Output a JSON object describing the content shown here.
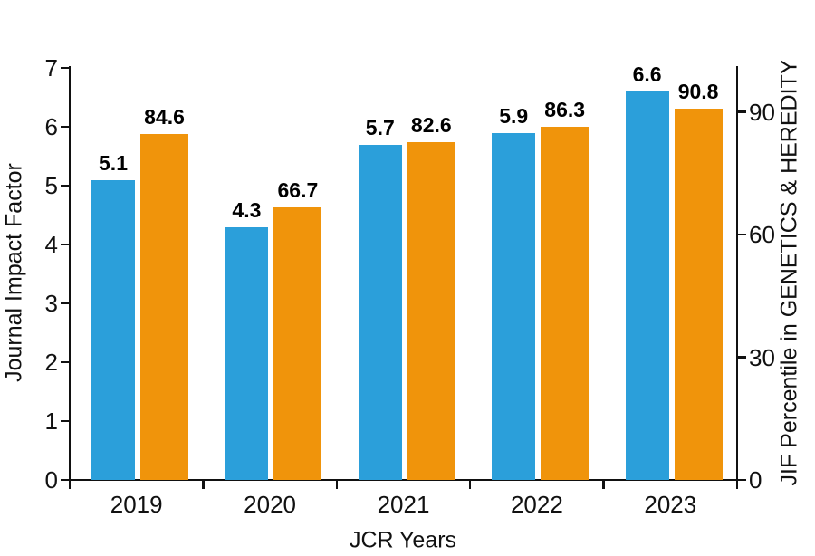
{
  "chart_data": {
    "type": "bar",
    "title": "",
    "xlabel": "JCR Years",
    "categories": [
      "2019",
      "2020",
      "2021",
      "2022",
      "2023"
    ],
    "series": [
      {
        "name": "Journal Impact Factor",
        "axis": "left",
        "color": "#2B9FDA",
        "values": [
          5.1,
          4.3,
          5.7,
          5.9,
          6.6
        ],
        "labels": [
          "5.1",
          "4.3",
          "5.7",
          "5.9",
          "6.6"
        ]
      },
      {
        "name": "JIF Percentile in GENETICS & HEREDITY",
        "axis": "right",
        "color": "#F0940B",
        "values": [
          84.6,
          66.7,
          82.6,
          86.3,
          90.8
        ],
        "labels": [
          "84.6",
          "66.7",
          "82.6",
          "86.3",
          "90.8"
        ]
      }
    ],
    "left_axis": {
      "label": "Journal Impact Factor",
      "min": 0,
      "max": 7,
      "ticks": [
        0,
        1,
        2,
        3,
        4,
        5,
        6,
        7
      ]
    },
    "right_axis": {
      "label": "JIF Percentile in GENETICS & HEREDITY",
      "min": 0,
      "max": 101,
      "ticks": [
        0,
        30,
        60,
        90
      ]
    },
    "legend": "none",
    "grid": false,
    "background": "#ffffff",
    "axis_color": "#111111"
  }
}
